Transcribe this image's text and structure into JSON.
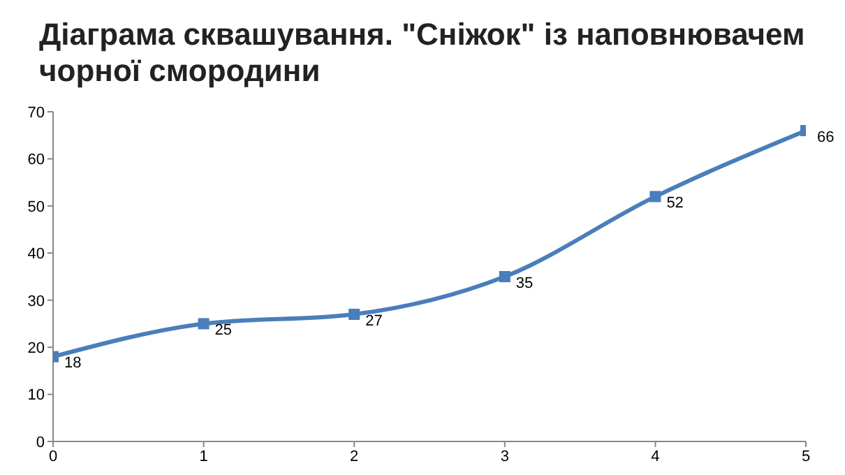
{
  "chart_data": {
    "type": "line",
    "title": "Діаграма сквашування. \"Сніжок\" із наповнювачем чорної смородини",
    "x": [
      0,
      1,
      2,
      3,
      4,
      5
    ],
    "series": [
      {
        "color": "#4a7ebb",
        "values": [
          18,
          25,
          27,
          35,
          52,
          66
        ]
      }
    ],
    "xlim": [
      0,
      5
    ],
    "xticks": [
      0,
      1,
      2,
      3,
      4,
      5
    ],
    "ylim": [
      0,
      70
    ],
    "yticks": [
      0,
      10,
      20,
      30,
      40,
      50,
      60,
      70
    ],
    "grid": false,
    "legend": false,
    "marker": "square",
    "line_style": "solid",
    "data_labels": true
  }
}
